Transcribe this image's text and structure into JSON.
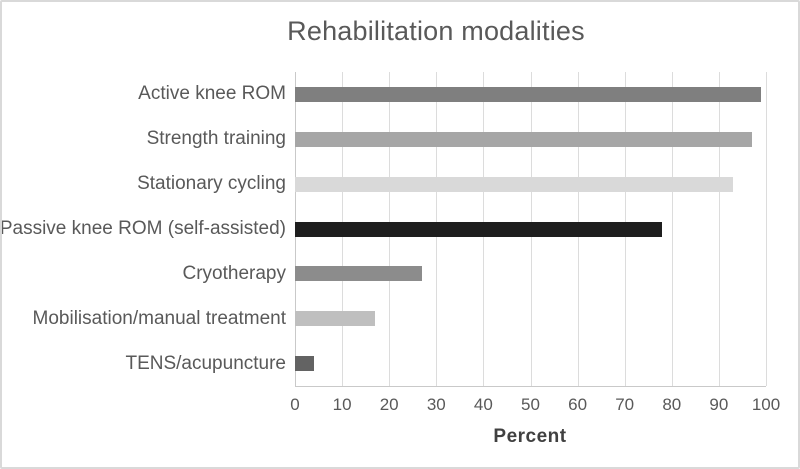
{
  "window": {
    "background": "#ffffff",
    "frame_border_color": "#d9d9d9"
  },
  "chart_data": {
    "type": "bar",
    "orientation": "horizontal",
    "title": "Rehabilitation modalities",
    "xlabel": "Percent",
    "categories": [
      "Active knee ROM",
      "Strength training",
      "Stationary cycling",
      "Passive knee ROM (self-assisted)",
      "Cryotherapy",
      "Mobilisation/manual treatment",
      "TENS/acupuncture"
    ],
    "values": [
      99,
      97,
      93,
      78,
      27,
      17,
      4
    ],
    "bar_colors": [
      "#7f7f7f",
      "#a6a6a6",
      "#d9d9d9",
      "#1e1e1e",
      "#8c8c8c",
      "#bfbfbf",
      "#636363"
    ],
    "xlim": [
      0,
      100
    ],
    "xticks": [
      0,
      10,
      20,
      30,
      40,
      50,
      60,
      70,
      80,
      90,
      100
    ],
    "grid": "vertical",
    "gridline_color": "#dcdcdc",
    "axis_line_color": "#c9c9c9",
    "legend": "none",
    "title_color": "#595959",
    "category_label_color": "#595959",
    "tick_label_color": "#595959",
    "xlabel_color": "#404040"
  }
}
